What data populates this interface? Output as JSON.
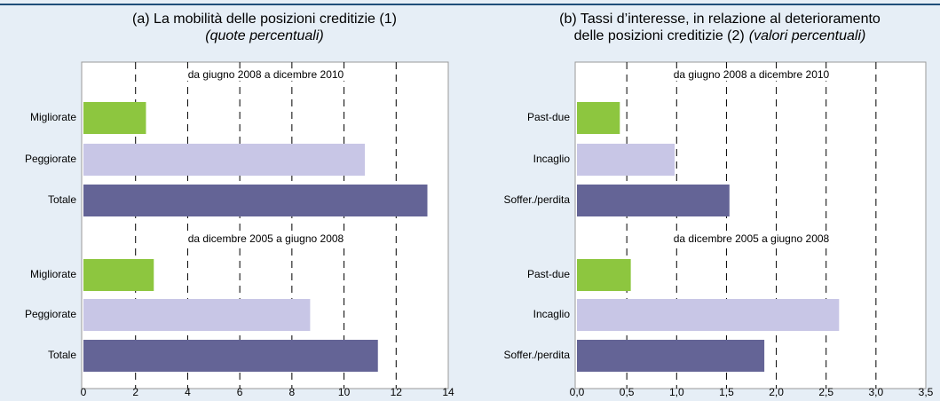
{
  "chart_data": [
    {
      "type": "bar",
      "orientation": "horizontal",
      "title": [
        "(a) La mobilità delle posizioni creditizie (1)"
      ],
      "subtitle": "(quote percentuali)",
      "colors": [
        "#8dc63f",
        "#c8c6e6",
        "#646496"
      ],
      "groups": [
        {
          "label": "da giugno 2008 a dicembre 2010",
          "categories": [
            "Migliorate",
            "Peggiorate",
            "Totale"
          ],
          "values": [
            2.4,
            10.8,
            13.2
          ]
        },
        {
          "label": "da dicembre 2005 a giugno 2008",
          "categories": [
            "Migliorate",
            "Peggiorate",
            "Totale"
          ],
          "values": [
            2.7,
            8.7,
            11.3
          ]
        }
      ],
      "xlim": [
        0,
        14
      ],
      "xticks": [
        0,
        2,
        4,
        6,
        8,
        10,
        12,
        14
      ],
      "grid": true
    },
    {
      "type": "bar",
      "orientation": "horizontal",
      "title": [
        "(b) Tassi d’interesse, in relazione al deterioramento",
        "delle posizioni creditizie (2)"
      ],
      "subtitle": "(valori percentuali)",
      "colors": [
        "#8dc63f",
        "#c8c6e6",
        "#646496"
      ],
      "groups": [
        {
          "label": "da giugno 2008 a dicembre 2010",
          "categories": [
            "Past-due",
            "Incaglio",
            "Soffer./perdita"
          ],
          "values": [
            0.43,
            0.98,
            1.53
          ]
        },
        {
          "label": "da dicembre 2005 a giugno 2008",
          "categories": [
            "Past-due",
            "Incaglio",
            "Soffer./perdita"
          ],
          "values": [
            0.54,
            2.63,
            1.88
          ]
        }
      ],
      "xlim": [
        0,
        3.5
      ],
      "xticks": [
        {
          "value": 0,
          "label": "0,0"
        },
        {
          "value": 0.5,
          "label": "0,5"
        },
        {
          "value": 1,
          "label": "1,0"
        },
        {
          "value": 1.5,
          "label": "1,5"
        },
        {
          "value": 2,
          "label": "2,0"
        },
        {
          "value": 2.5,
          "label": "2,5"
        },
        {
          "value": 3,
          "label": "3,0"
        },
        {
          "value": 3.5,
          "label": "3,5"
        }
      ],
      "grid": true
    }
  ]
}
